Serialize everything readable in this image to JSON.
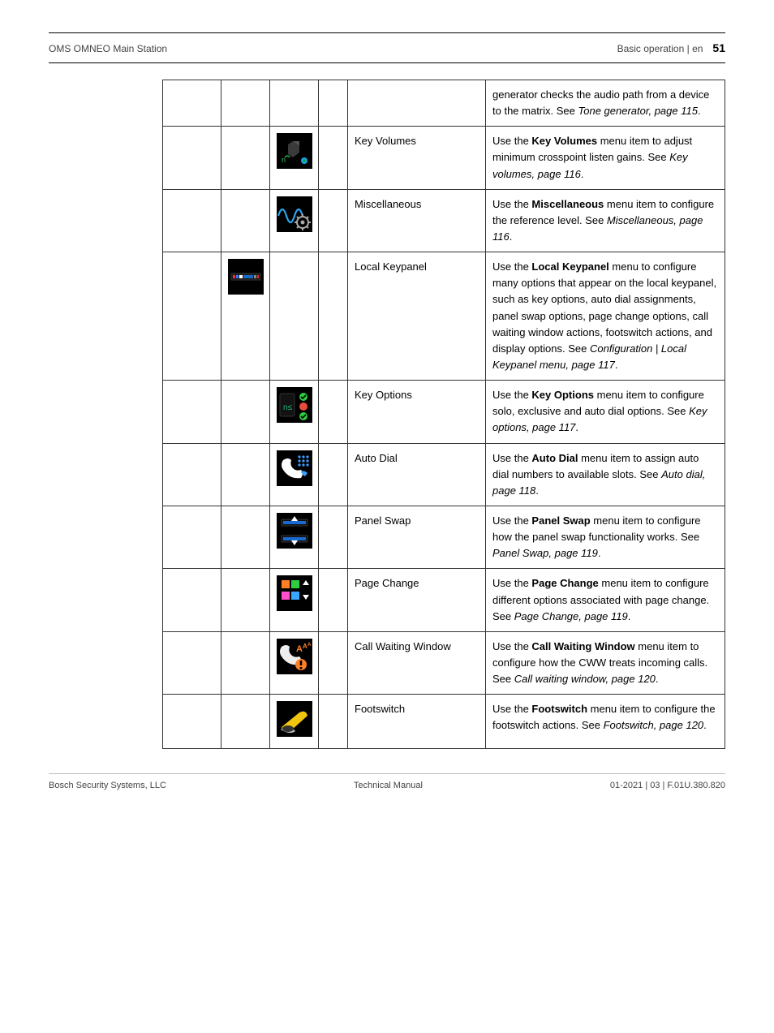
{
  "header": {
    "left": "OMS OMNEO Main Station",
    "right_label": "Basic operation | en",
    "page_number": "51"
  },
  "footer": {
    "left": "Bosch Security Systems, LLC",
    "center": "Technical Manual",
    "right": "01-2021 | 03 | F.01U.380.820"
  },
  "rows": [
    {
      "icon_col": null,
      "icon": null,
      "name": "",
      "desc_pre": "generator checks the audio path from a device to the matrix. See ",
      "desc_strong": "",
      "desc_mid": "",
      "desc_em": "Tone generator, page 115",
      "desc_post": "."
    },
    {
      "icon_col": 3,
      "icon": "key-volumes",
      "name": "Key Volumes",
      "desc_pre": "Use the ",
      "desc_strong": "Key Volumes",
      "desc_mid": " menu item to adjust minimum crosspoint listen gains. See ",
      "desc_em": "Key volumes, page 116",
      "desc_post": "."
    },
    {
      "icon_col": 3,
      "icon": "misc",
      "name": "Miscellaneous",
      "desc_pre": "Use the ",
      "desc_strong": "Miscellaneous",
      "desc_mid": " menu item to configure the reference level. See ",
      "desc_em": "Miscellaneous, page 116",
      "desc_post": "."
    },
    {
      "icon_col": 2,
      "icon": "local-keypanel",
      "name": "Local Keypanel",
      "desc_pre": "Use the ",
      "desc_strong": "Local Keypanel",
      "desc_mid": " menu to configure many options that appear on the local keypanel, such as key options, auto dial assignments, panel swap options, page change options, call waiting window actions, footswitch actions, and display options. See ",
      "desc_em": "Configuration | Local Keypanel menu, page 117",
      "desc_post": "."
    },
    {
      "icon_col": 3,
      "icon": "key-options",
      "name": "Key Options",
      "desc_pre": "Use the ",
      "desc_strong": "Key Options",
      "desc_mid": " menu item to configure solo, exclusive and auto dial options. See ",
      "desc_em": "Key options, page 117",
      "desc_post": "."
    },
    {
      "icon_col": 3,
      "icon": "auto-dial",
      "name": "Auto Dial",
      "desc_pre": "Use the ",
      "desc_strong": "Auto Dial",
      "desc_mid": " menu item to assign auto dial numbers to available slots. See ",
      "desc_em": "Auto dial, page 118",
      "desc_post": "."
    },
    {
      "icon_col": 3,
      "icon": "panel-swap",
      "name": "Panel Swap",
      "desc_pre": "Use the ",
      "desc_strong": "Panel Swap",
      "desc_mid": " menu item to configure how the panel swap functionality works. See ",
      "desc_em": "Panel Swap, page 119",
      "desc_post": "."
    },
    {
      "icon_col": 3,
      "icon": "page-change",
      "name": "Page Change",
      "desc_pre": "Use the ",
      "desc_strong": "Page Change",
      "desc_mid": " menu item to configure different options associated with page change. See ",
      "desc_em": "Page Change, page 119",
      "desc_post": "."
    },
    {
      "icon_col": 3,
      "icon": "call-waiting",
      "name": "Call Waiting Window",
      "desc_pre": "Use the ",
      "desc_strong": "Call Waiting Window",
      "desc_mid": " menu item to configure how the CWW treats incoming calls. See ",
      "desc_em": "Call waiting window, page 120",
      "desc_post": "."
    },
    {
      "icon_col": 3,
      "icon": "footswitch",
      "name": "Footswitch",
      "desc_pre": "Use the ",
      "desc_strong": "Footswitch",
      "desc_mid": " menu item to configure the footswitch actions. See ",
      "desc_em": "Footswitch, page 120",
      "desc_post": "."
    }
  ],
  "icons": {
    "key-volumes": {
      "bg": "#000"
    },
    "misc": {
      "bg": "#000"
    },
    "local-keypanel": {
      "bg": "#000"
    },
    "key-options": {
      "bg": "#000"
    },
    "auto-dial": {
      "bg": "#000"
    },
    "panel-swap": {
      "bg": "#000"
    },
    "page-change": {
      "bg": "#000"
    },
    "call-waiting": {
      "bg": "#000"
    },
    "footswitch": {
      "bg": "#000"
    }
  }
}
